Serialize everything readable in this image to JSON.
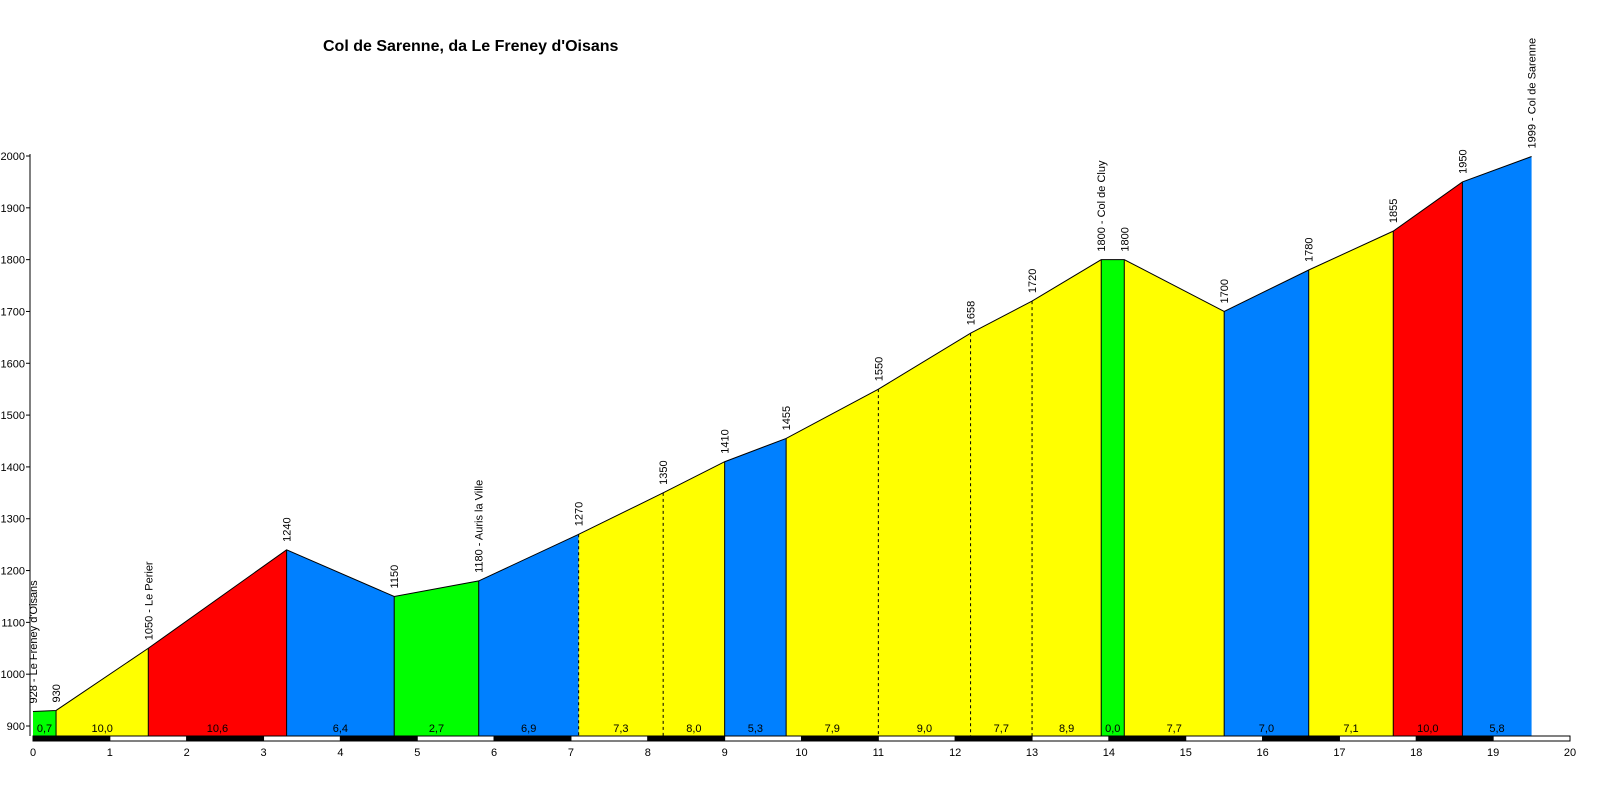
{
  "chart_data": {
    "type": "area",
    "title": "Col de Sarenne, da Le Freney d'Oisans",
    "xlabel": "",
    "ylabel": "",
    "xlim": [
      0,
      20
    ],
    "ylim": [
      880,
      2000
    ],
    "x_ticks": [
      "0",
      "1",
      "2",
      "3",
      "4",
      "5",
      "6",
      "7",
      "8",
      "9",
      "10",
      "11",
      "12",
      "13",
      "14",
      "15",
      "16",
      "17",
      "18",
      "19",
      "20"
    ],
    "y_ticks": [
      "900",
      "1000",
      "1100",
      "1200",
      "1300",
      "1400",
      "1500",
      "1600",
      "1700",
      "1800",
      "1900",
      "2000"
    ],
    "grid": false,
    "colors": {
      "green": "#00ff00",
      "yellow": "#ffff00",
      "red": "#ff0000",
      "blue": "#0080ff",
      "outline": "#000000"
    },
    "profile": [
      {
        "km": 0.0,
        "alt": 928
      },
      {
        "km": 0.3,
        "alt": 930
      },
      {
        "km": 1.5,
        "alt": 1050
      },
      {
        "km": 3.3,
        "alt": 1240
      },
      {
        "km": 4.7,
        "alt": 1150
      },
      {
        "km": 5.8,
        "alt": 1180
      },
      {
        "km": 7.1,
        "alt": 1270
      },
      {
        "km": 8.2,
        "alt": 1350
      },
      {
        "km": 9.0,
        "alt": 1410
      },
      {
        "km": 9.8,
        "alt": 1455
      },
      {
        "km": 11.0,
        "alt": 1550
      },
      {
        "km": 12.2,
        "alt": 1658
      },
      {
        "km": 13.0,
        "alt": 1720
      },
      {
        "km": 13.9,
        "alt": 1800
      },
      {
        "km": 14.2,
        "alt": 1800
      },
      {
        "km": 15.5,
        "alt": 1700
      },
      {
        "km": 16.6,
        "alt": 1780
      },
      {
        "km": 17.7,
        "alt": 1855
      },
      {
        "km": 18.6,
        "alt": 1950
      },
      {
        "km": 19.5,
        "alt": 1999
      }
    ],
    "segments": [
      {
        "grade": "0,7",
        "color": "green"
      },
      {
        "grade": "10,0",
        "color": "yellow"
      },
      {
        "grade": "10,6",
        "color": "red"
      },
      {
        "grade": "6,4",
        "color": "blue"
      },
      {
        "grade": "2,7",
        "color": "green"
      },
      {
        "grade": "6,9",
        "color": "blue"
      },
      {
        "grade": "7,3",
        "color": "yellow"
      },
      {
        "grade": "8,0",
        "color": "yellow"
      },
      {
        "grade": "5,3",
        "color": "blue"
      },
      {
        "grade": "7,9",
        "color": "yellow"
      },
      {
        "grade": "9,0",
        "color": "yellow"
      },
      {
        "grade": "7,7",
        "color": "yellow"
      },
      {
        "grade": "8,9",
        "color": "yellow"
      },
      {
        "grade": "0,0",
        "color": "green"
      },
      {
        "grade": "7,7",
        "color": "yellow"
      },
      {
        "grade": "7,0",
        "color": "blue"
      },
      {
        "grade": "7,1",
        "color": "yellow"
      },
      {
        "grade": "10,0",
        "color": "red"
      },
      {
        "grade": "5,8",
        "color": "blue"
      }
    ],
    "point_labels": [
      "928 - Le Freney d'Oisans",
      "930",
      "1050 - Le Perier",
      "1240",
      "1150",
      "1180 - Auris la Ville",
      "1270",
      "1350",
      "1410",
      "1455",
      "1550",
      "1658",
      "1720",
      "1800 - Col de Cluy",
      "1800",
      "1700",
      "1780",
      "1855",
      "1950",
      "1999 - Col de Sarenne"
    ],
    "dashed_boundaries": [
      6,
      7,
      10,
      11,
      12
    ]
  }
}
